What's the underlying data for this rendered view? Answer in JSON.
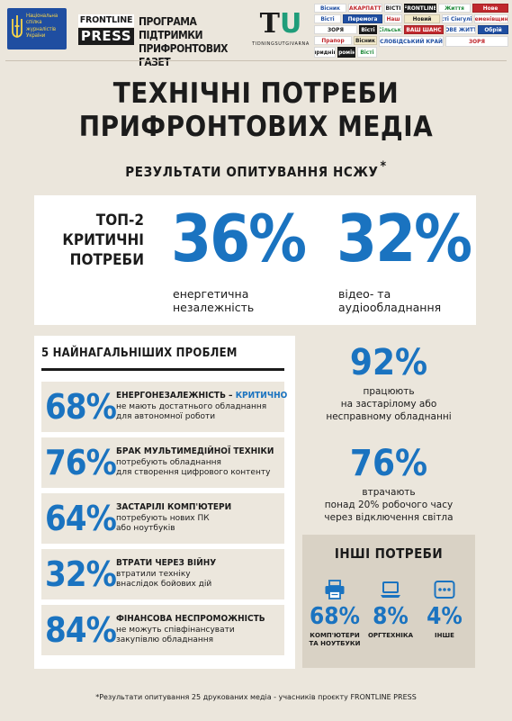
{
  "header": {
    "nsju_logo": {
      "text": "Національна спілка журналістів України",
      "icon": "ukraine-trident-emblem"
    },
    "frontline_press": {
      "top": "FRONTLINE",
      "bottom": "PRESS"
    },
    "program_title": "ПРОГРАМА ПІДТРИМКИ ПРИФРОНТОВИХ ГАЗЕТ",
    "tidnings": {
      "mark_t": "T",
      "mark_u": "U",
      "text": "TIDNINGSUTGIVARNA"
    },
    "newspapers": [
      "Вісник",
      "ЗАКАРПАТТЯ",
      "ВІСТІ",
      "FRONTLINE",
      "Життя",
      "Нове",
      "Вісті",
      "Перемога",
      "Наш",
      "Новий",
      "Вісті Сінгуліна",
      "Семенівщини",
      "ЗОРЯ",
      "Вісті",
      "Сільські",
      "ВАШ ШАНС",
      "НОВЕ ЖИТТЯ",
      "Обрій",
      "Прапор",
      "Вісник",
      "СЛОБІДСЬКИЙ КРАЙ",
      "ЗОРЯ",
      "Вісті придніпров'я",
      "Промінь",
      "Вісті"
    ]
  },
  "title": {
    "line1": "ТЕХНІЧНІ ПОТРЕБИ",
    "line2": "ПРИФРОНТОВИХ МЕДІА"
  },
  "subtitle": {
    "text": "РЕЗУЛЬТАТИ ОПИТУВАННЯ НСЖУ",
    "mark": "*"
  },
  "top_needs": {
    "label": {
      "line1": "ТОП-2",
      "line2": "КРИТИЧНІ",
      "line3": "ПОТРЕБИ"
    },
    "items": [
      {
        "value": "36%",
        "caption_line1": "енергетична",
        "caption_line2": "незалежність"
      },
      {
        "value": "32%",
        "caption_line1": "відео- та",
        "caption_line2": "аудіообладнання"
      }
    ]
  },
  "problems": {
    "heading": "5 НАЙНАГАЛЬНІШИХ ПРОБЛЕМ",
    "items": [
      {
        "value": "68%",
        "title": "ЕНЕРГОНЕЗАЛЕЖНІСТЬ – ",
        "title_accent": "КРИТИЧНО",
        "line1": "не мають достатнього обладнання",
        "line2": "для автономної роботи"
      },
      {
        "value": "76%",
        "title": "БРАК МУЛЬТИМЕДІЙНОЇ ТЕХНІКИ",
        "title_accent": "",
        "line1": "потребують обладнання",
        "line2": "для створення цифрового контенту"
      },
      {
        "value": "64%",
        "title": "ЗАСТАРІЛІ КОМП'ЮТЕРИ",
        "title_accent": "",
        "line1": "потребують нових ПК",
        "line2": "або ноутбуків"
      },
      {
        "value": "32%",
        "title": "ВТРАТИ ЧЕРЕЗ ВІЙНУ",
        "title_accent": "",
        "line1": "втратили техніку",
        "line2": "внаслідок бойових дій"
      },
      {
        "value": "84%",
        "title": "ФІНАНСОВА НЕСПРОМОЖНІСТЬ",
        "title_accent": "",
        "line1": "не можуть співфінансувати",
        "line2": "закупівлю обладнання"
      }
    ]
  },
  "stats": [
    {
      "value": "92%",
      "line1": "працюють",
      "line2": "на застарілому або",
      "line3": "несправному обладнанні"
    },
    {
      "value": "76%",
      "line1": "втрачають",
      "line2": "понад 20% робочого часу",
      "line3": "через відключення світла"
    }
  ],
  "other_needs": {
    "heading": "ІНШІ ПОТРЕБИ",
    "items": [
      {
        "icon": "printer-icon",
        "value": "68%",
        "label_line1": "КОМП'ЮТЕРИ",
        "label_line2": "ТА НОУТБУКИ"
      },
      {
        "icon": "laptop-icon",
        "value": "8%",
        "label_line1": "ОРГТЕХНІКА",
        "label_line2": ""
      },
      {
        "icon": "more-dots-icon",
        "value": "4%",
        "label_line1": "ІНШЕ",
        "label_line2": ""
      }
    ]
  },
  "footnote": "*Результати опитування 25 друкованих медіа - учасників проєкту FRONTLINE PRESS",
  "colors": {
    "accent_blue": "#1a73c0",
    "background": "#ebe6dc",
    "panel_gray": "#d9d2c5",
    "row_beige": "#ece7dd"
  }
}
